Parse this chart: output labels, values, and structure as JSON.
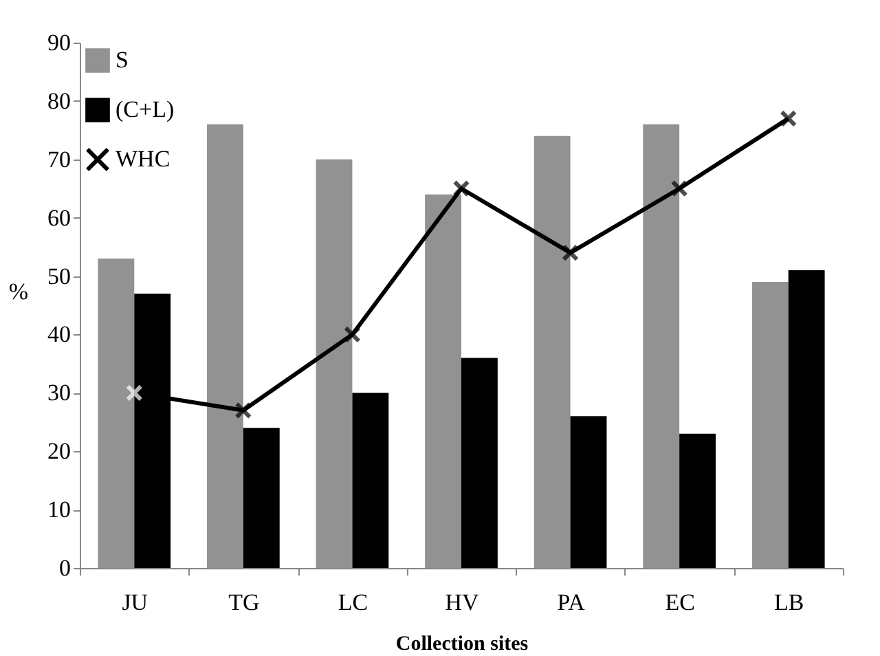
{
  "chart_data": {
    "type": "bar",
    "xlabel": "Collection sites",
    "ylabel": "%",
    "categories": [
      "JU",
      "TG",
      "LC",
      "HV",
      "PA",
      "EC",
      "LB"
    ],
    "series": [
      {
        "name": "S",
        "color": "#929292",
        "values": [
          53,
          76,
          70,
          64,
          74,
          76,
          49
        ]
      },
      {
        "name": "(C+L)",
        "color": "#000000",
        "values": [
          47,
          24,
          30,
          36,
          26,
          23,
          51
        ]
      },
      {
        "name": "WHC",
        "type": "line",
        "color": "#000000",
        "colors": [
          "#ffffff",
          "#000000",
          "#000000",
          "#000000",
          "#000000",
          "#000000",
          "#000000"
        ],
        "marker": "cross",
        "values": [
          30,
          27,
          40,
          65,
          54,
          65,
          77
        ]
      }
    ],
    "ylim": [
      0,
      90
    ],
    "yticks": [
      0,
      10,
      20,
      30,
      40,
      50,
      60,
      70,
      80,
      90
    ],
    "grid": false,
    "legend": "top left"
  }
}
